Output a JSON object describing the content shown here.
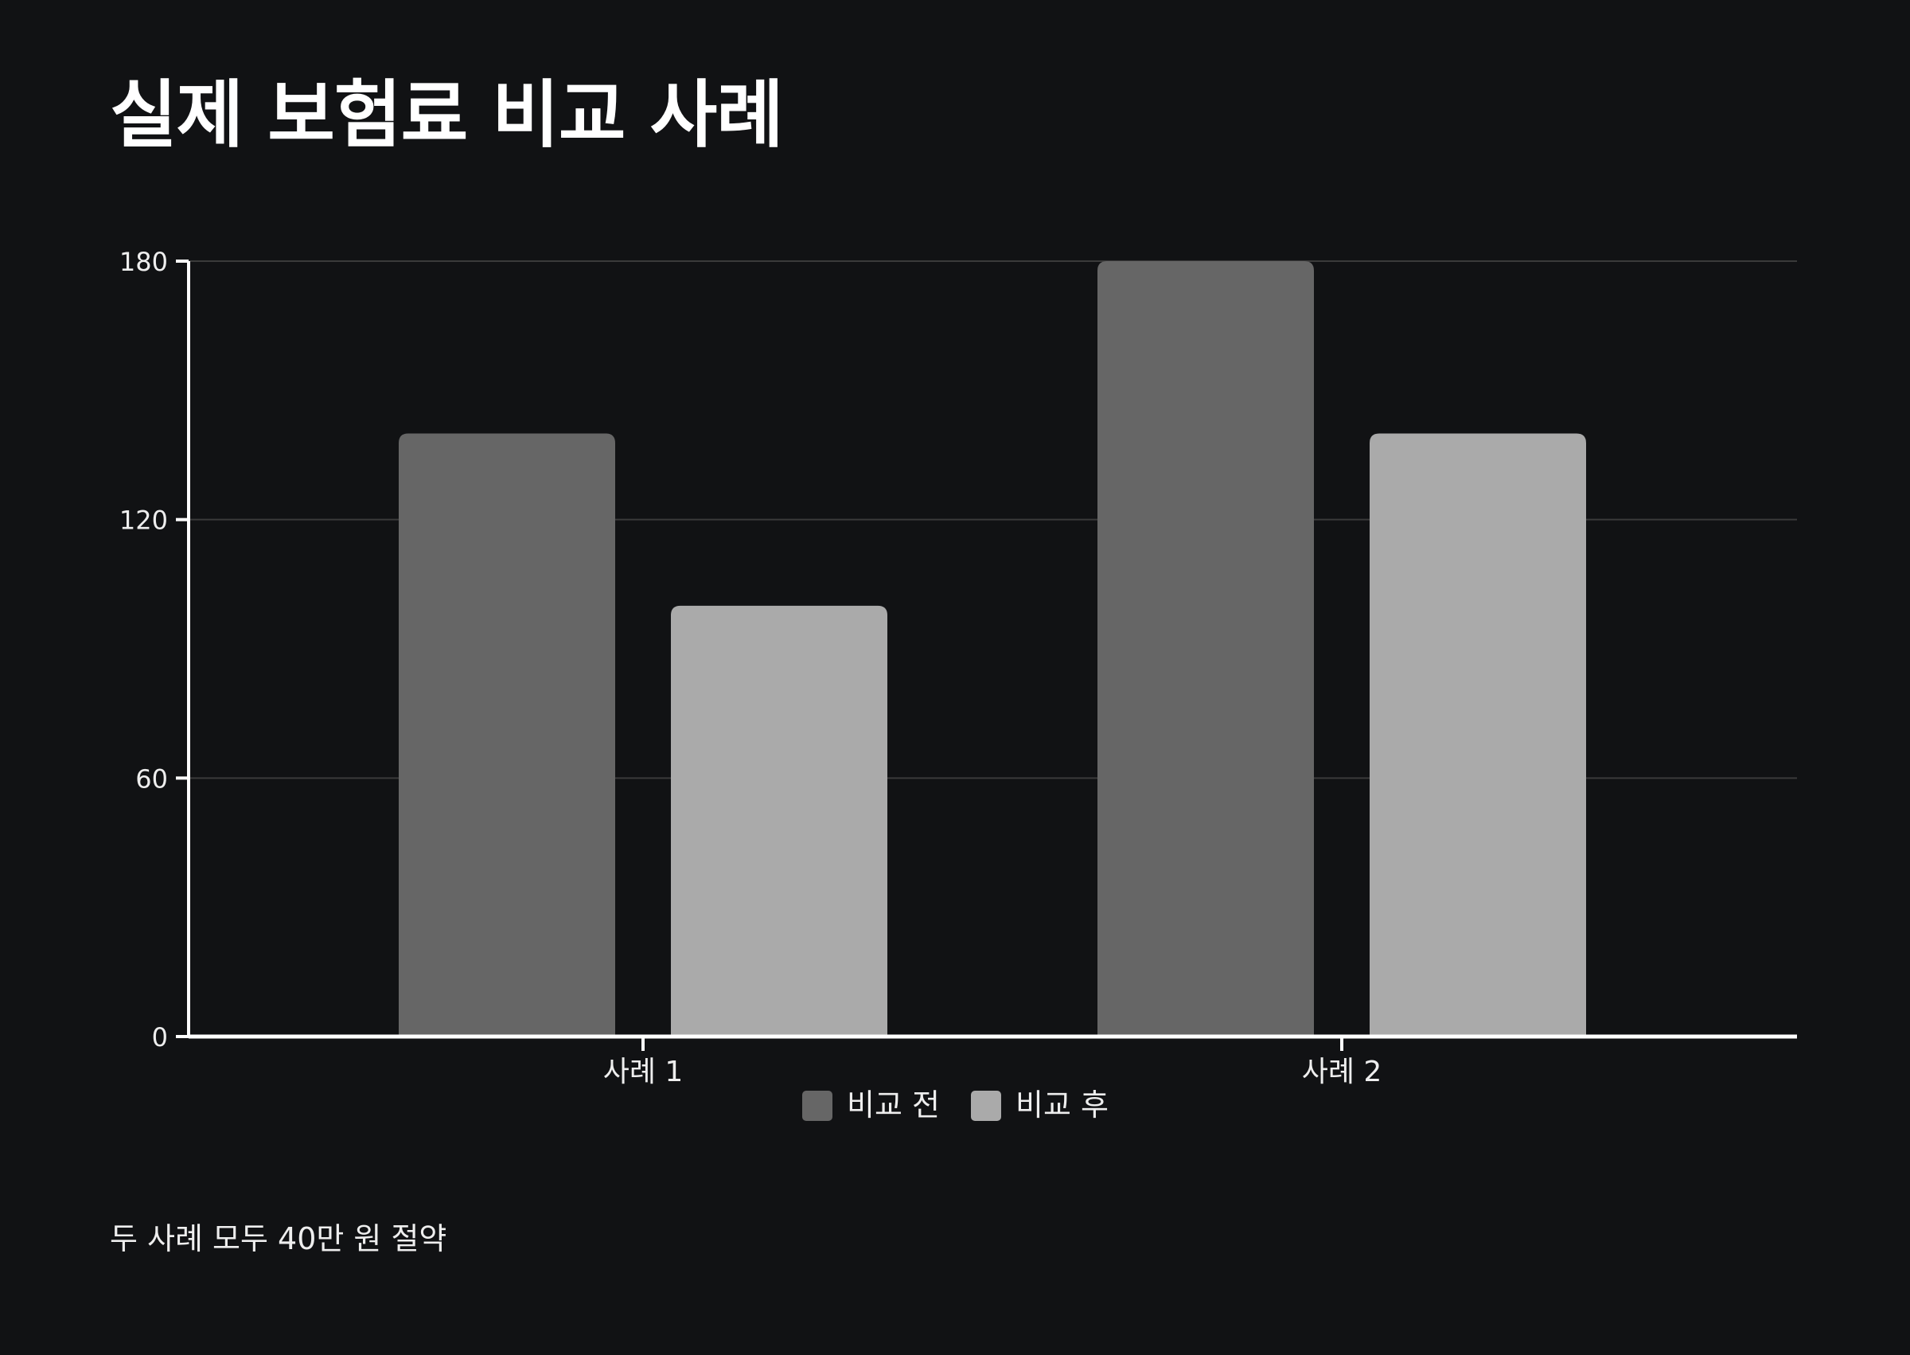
{
  "title": "실제 보험료 비교 사례",
  "footnote": "두 사례 모두 40만 원 절약",
  "colors": {
    "background": "#111214",
    "before": "#666666",
    "after": "#aaaaaa",
    "grid": "#3a3a3a",
    "axis": "#ffffff",
    "text": "#eeeeee"
  },
  "chart_data": {
    "type": "bar",
    "categories": [
      "사례 1",
      "사례 2"
    ],
    "series": [
      {
        "name": "비교 전",
        "values": [
          140,
          180
        ]
      },
      {
        "name": "비교 후",
        "values": [
          100,
          140
        ]
      }
    ],
    "ylim": [
      0,
      180
    ],
    "yticks": [
      "0",
      "60",
      "120",
      "180"
    ],
    "grid": true,
    "legend_position": "bottom-center"
  }
}
